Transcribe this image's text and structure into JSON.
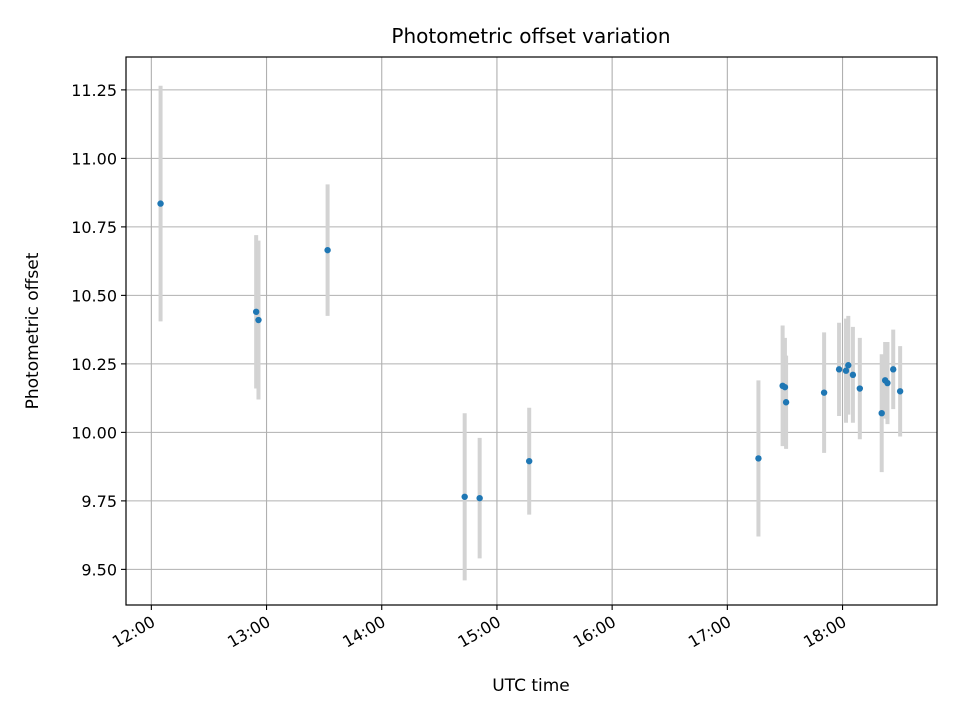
{
  "chart_data": {
    "type": "scatter",
    "title": "Photometric offset variation",
    "xlabel": "UTC time",
    "ylabel": "Photometric offset",
    "x_unit": "hours (UTC)",
    "xlim": [
      11.78,
      18.82
    ],
    "ylim": [
      9.37,
      11.37
    ],
    "x_ticks": [
      12,
      13,
      14,
      15,
      16,
      17,
      18
    ],
    "x_tick_labels": [
      "12:00",
      "13:00",
      "14:00",
      "15:00",
      "16:00",
      "17:00",
      "18:00"
    ],
    "y_ticks": [
      9.5,
      9.75,
      10.0,
      10.25,
      10.5,
      10.75,
      11.0,
      11.25
    ],
    "y_tick_labels": [
      "9.50",
      "9.75",
      "10.00",
      "10.25",
      "10.50",
      "10.75",
      "11.00",
      "11.25"
    ],
    "grid": true,
    "marker_color": "#1f77b4",
    "errorbar_color": "#d3d3d3",
    "points": [
      {
        "x": 12.08,
        "y": 10.835,
        "yerr": 0.43
      },
      {
        "x": 12.91,
        "y": 10.44,
        "yerr": 0.28
      },
      {
        "x": 12.93,
        "y": 10.41,
        "yerr": 0.29
      },
      {
        "x": 13.53,
        "y": 10.665,
        "yerr": 0.24
      },
      {
        "x": 14.72,
        "y": 9.765,
        "yerr": 0.305
      },
      {
        "x": 14.85,
        "y": 9.76,
        "yerr": 0.22
      },
      {
        "x": 15.28,
        "y": 9.895,
        "yerr": 0.195
      },
      {
        "x": 17.27,
        "y": 9.905,
        "yerr": 0.285
      },
      {
        "x": 17.48,
        "y": 10.17,
        "yerr": 0.22
      },
      {
        "x": 17.5,
        "y": 10.165,
        "yerr": 0.18
      },
      {
        "x": 17.51,
        "y": 10.11,
        "yerr": 0.17
      },
      {
        "x": 17.84,
        "y": 10.145,
        "yerr": 0.22
      },
      {
        "x": 17.97,
        "y": 10.23,
        "yerr": 0.17
      },
      {
        "x": 18.03,
        "y": 10.225,
        "yerr": 0.19
      },
      {
        "x": 18.05,
        "y": 10.245,
        "yerr": 0.18
      },
      {
        "x": 18.09,
        "y": 10.21,
        "yerr": 0.175
      },
      {
        "x": 18.15,
        "y": 10.16,
        "yerr": 0.185
      },
      {
        "x": 18.34,
        "y": 10.07,
        "yerr": 0.215
      },
      {
        "x": 18.37,
        "y": 10.19,
        "yerr": 0.14
      },
      {
        "x": 18.39,
        "y": 10.18,
        "yerr": 0.15
      },
      {
        "x": 18.44,
        "y": 10.23,
        "yerr": 0.145
      },
      {
        "x": 18.5,
        "y": 10.15,
        "yerr": 0.165
      }
    ]
  }
}
